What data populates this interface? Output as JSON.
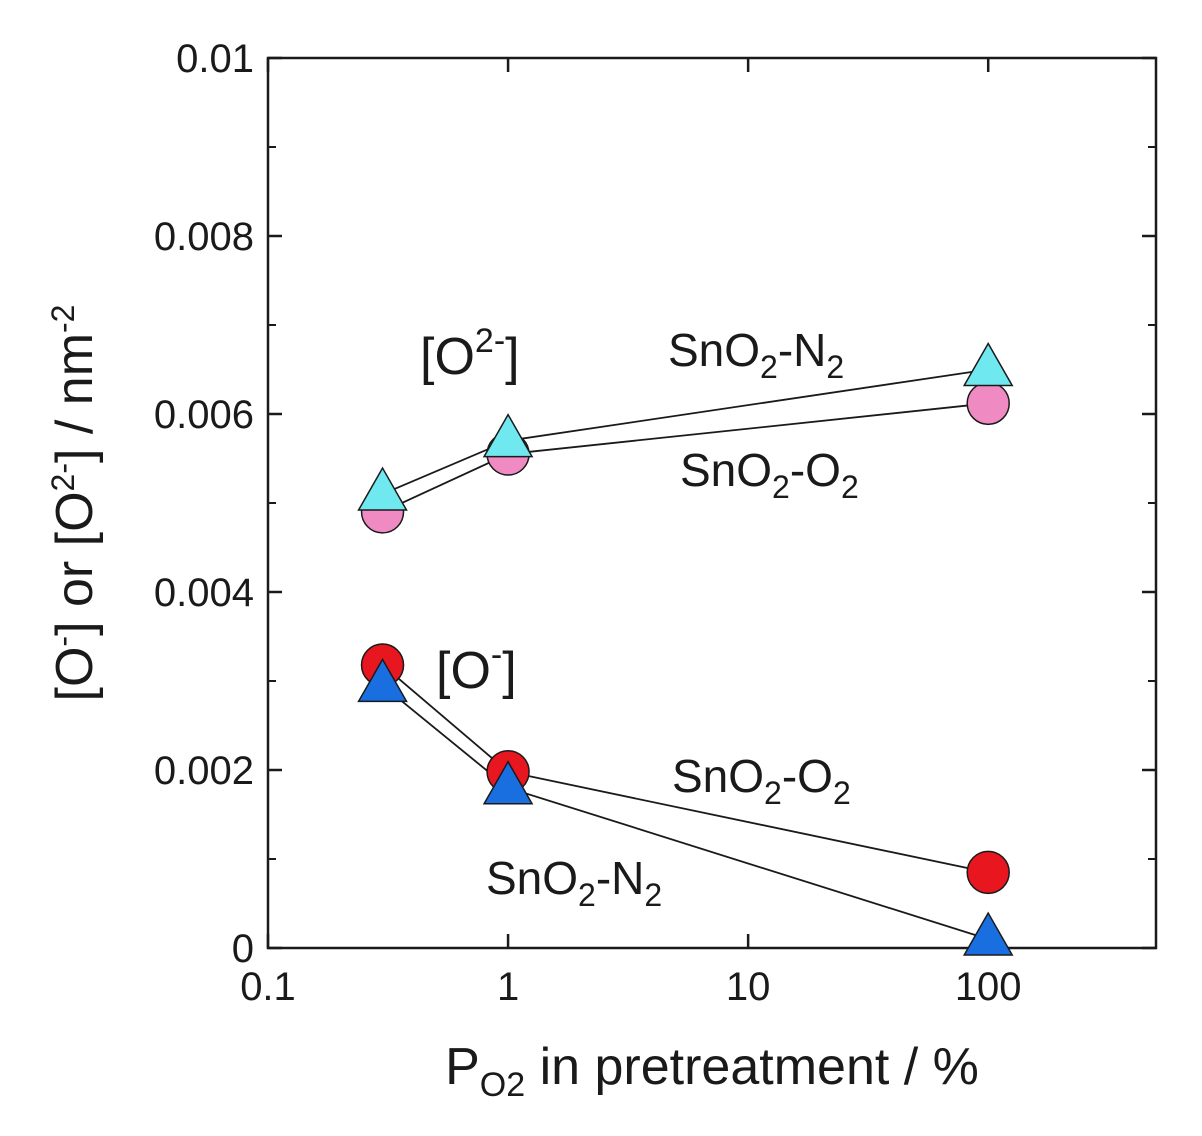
{
  "chart_data": {
    "type": "scatter",
    "x_scale": "log",
    "xlim": [
      0.1,
      500
    ],
    "ylim": [
      0,
      0.01
    ],
    "x_ticks": [
      0.1,
      1,
      10,
      100
    ],
    "x_tick_labels": [
      "0.1",
      "1",
      "10",
      "100"
    ],
    "y_ticks": [
      0,
      0.002,
      0.004,
      0.006,
      0.008,
      0.01
    ],
    "y_tick_labels": [
      "0",
      "0.002",
      "0.004",
      "0.006",
      "0.008",
      "0.01"
    ],
    "xlabel": {
      "main": "P",
      "sub": "O2",
      "rest": " in pretreatment / %"
    },
    "ylabel": {
      "a": "[O",
      "sup1": "-",
      "b": "] or [O",
      "sup2": "2-",
      "c": "] / nm",
      "sup3": "-2"
    },
    "grid": false,
    "series": [
      {
        "group": "O2-",
        "marker": "circle",
        "fill": "#f08ac3",
        "x": [
          0.3,
          1,
          100
        ],
        "y": [
          0.0049,
          0.00555,
          0.00612
        ]
      },
      {
        "group": "O2-",
        "marker": "triangle",
        "fill": "#70e8f0",
        "x": [
          0.3,
          1,
          100
        ],
        "y": [
          0.0051,
          0.0057,
          0.0065
        ]
      },
      {
        "group": "O-",
        "marker": "circle",
        "fill": "#e8161e",
        "x": [
          0.3,
          1,
          100
        ],
        "y": [
          0.00318,
          0.00198,
          0.00085
        ]
      },
      {
        "group": "O-",
        "marker": "triangle",
        "fill": "#1a6fe0",
        "x": [
          0.3,
          1,
          100
        ],
        "y": [
          0.00295,
          0.0018,
          0.0001
        ]
      }
    ],
    "annotations": {
      "o2_group": {
        "open": "[O",
        "sup": "2-",
        "close": "]"
      },
      "o_group": {
        "open": "[O",
        "sup": "-",
        "close": "]"
      },
      "upper_n2": {
        "a": "SnO",
        "sub1": "2",
        "b": "-N",
        "sub2": "2"
      },
      "upper_o2": {
        "a": "SnO",
        "sub1": "2",
        "b": "-O",
        "sub2": "2"
      },
      "lower_o2": {
        "a": "SnO",
        "sub1": "2",
        "b": "-O",
        "sub2": "2"
      },
      "lower_n2": {
        "a": "SnO",
        "sub1": "2",
        "b": "-N",
        "sub2": "2"
      }
    }
  }
}
